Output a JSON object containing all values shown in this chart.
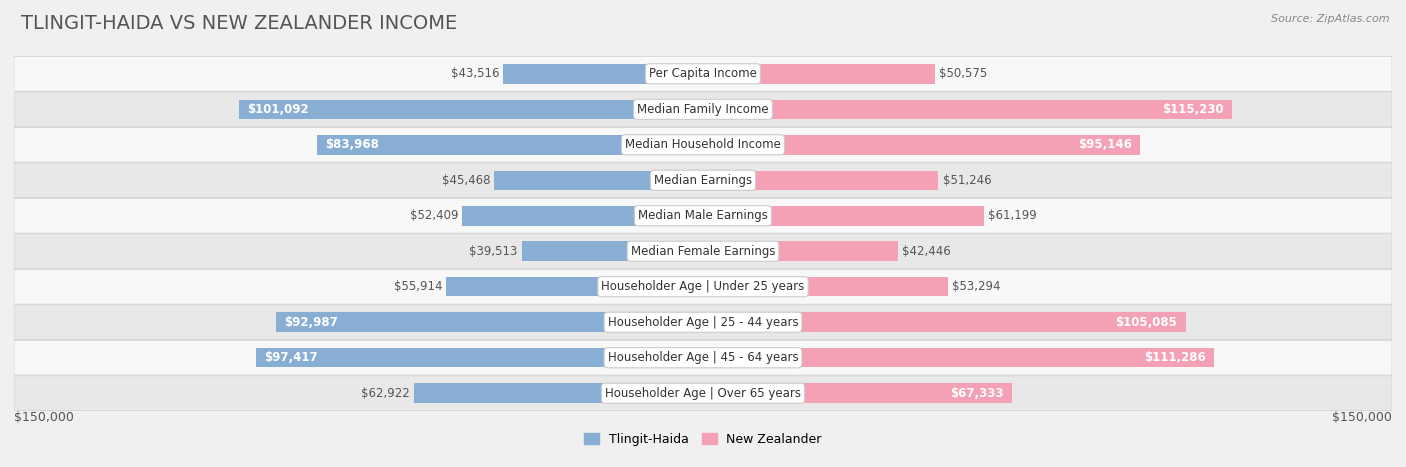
{
  "title": "TLINGIT-HAIDA VS NEW ZEALANDER INCOME",
  "source": "Source: ZipAtlas.com",
  "categories": [
    "Per Capita Income",
    "Median Family Income",
    "Median Household Income",
    "Median Earnings",
    "Median Male Earnings",
    "Median Female Earnings",
    "Householder Age | Under 25 years",
    "Householder Age | 25 - 44 years",
    "Householder Age | 45 - 64 years",
    "Householder Age | Over 65 years"
  ],
  "tlingit_values": [
    43516,
    101092,
    83968,
    45468,
    52409,
    39513,
    55914,
    92987,
    97417,
    62922
  ],
  "nz_values": [
    50575,
    115230,
    95146,
    51246,
    61199,
    42446,
    53294,
    105085,
    111286,
    67333
  ],
  "tlingit_color": "#89aed4",
  "nz_color": "#f4a0b5",
  "tlingit_color_dark": "#5b8db8",
  "nz_color_dark": "#e8638a",
  "max_value": 150000,
  "bar_height": 0.55,
  "background_color": "#f0f0f0",
  "row_bg_light": "#f8f8f8",
  "row_bg_dark": "#e8e8e8",
  "row_border_color": "#d0d0d0",
  "title_color": "#555555",
  "title_fontsize": 14,
  "label_fontsize": 8.5,
  "category_fontsize": 8.5,
  "axis_label": "$150,000",
  "legend_tlingit": "Tlingit-Haida",
  "legend_nz": "New Zealander",
  "inner_label_threshold": 65000
}
